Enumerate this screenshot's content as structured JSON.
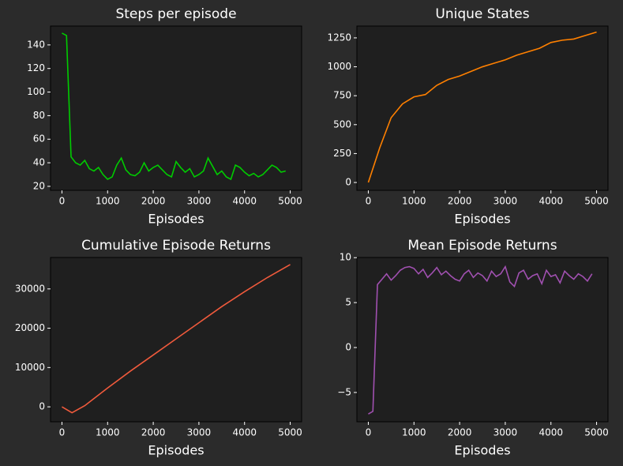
{
  "chart_data": [
    {
      "type": "line",
      "title": "Steps per episode",
      "xlabel": "Episodes",
      "color": "#00cc00",
      "x": [
        0,
        100,
        200,
        300,
        400,
        500,
        600,
        700,
        800,
        900,
        1000,
        1100,
        1200,
        1300,
        1400,
        1500,
        1600,
        1700,
        1800,
        1900,
        2000,
        2100,
        2200,
        2300,
        2400,
        2500,
        2600,
        2700,
        2800,
        2900,
        3000,
        3100,
        3200,
        3300,
        3400,
        3500,
        3600,
        3700,
        3800,
        3900,
        4000,
        4100,
        4200,
        4300,
        4400,
        4500,
        4600,
        4700,
        4800,
        4900
      ],
      "values": [
        150,
        148,
        45,
        40,
        38,
        42,
        35,
        33,
        36,
        30,
        26,
        28,
        38,
        44,
        34,
        30,
        29,
        32,
        40,
        33,
        36,
        38,
        34,
        30,
        28,
        41,
        36,
        32,
        35,
        28,
        30,
        33,
        44,
        37,
        30,
        33,
        28,
        26,
        38,
        36,
        32,
        29,
        31,
        28,
        30,
        34,
        38,
        36,
        32,
        33
      ],
      "xlim": [
        -250,
        5250
      ],
      "ylim": [
        16.6,
        156
      ],
      "xticks": [
        0,
        1000,
        2000,
        3000,
        4000,
        5000
      ],
      "yticks": [
        20,
        40,
        60,
        80,
        100,
        120,
        140
      ]
    },
    {
      "type": "line",
      "title": "Unique States",
      "xlabel": "Episodes",
      "color": "#ff8000",
      "x": [
        0,
        250,
        500,
        750,
        1000,
        1250,
        1500,
        1750,
        2000,
        2250,
        2500,
        2750,
        3000,
        3250,
        3500,
        3750,
        4000,
        4250,
        4500,
        4750,
        5000
      ],
      "values": [
        0,
        300,
        560,
        680,
        740,
        760,
        840,
        890,
        920,
        960,
        1000,
        1030,
        1060,
        1100,
        1130,
        1160,
        1210,
        1230,
        1240,
        1270,
        1300
      ],
      "xlim": [
        -250,
        5250
      ],
      "ylim": [
        -68,
        1352
      ],
      "xticks": [
        0,
        1000,
        2000,
        3000,
        4000,
        5000
      ],
      "yticks": [
        0,
        250,
        500,
        750,
        1000,
        1250
      ]
    },
    {
      "type": "line",
      "title": "Cumulative Episode Returns",
      "xlabel": "Episodes",
      "color": "#f05a3c",
      "x": [
        0,
        220,
        500,
        1000,
        1500,
        2000,
        2500,
        3000,
        3500,
        4000,
        4500,
        5000
      ],
      "values": [
        0,
        -1500,
        300,
        4800,
        9100,
        13200,
        17300,
        21400,
        25500,
        29300,
        32900,
        36200
      ],
      "xlim": [
        -250,
        5250
      ],
      "ylim": [
        -3800,
        38000
      ],
      "xticks": [
        0,
        1000,
        2000,
        3000,
        4000,
        5000
      ],
      "yticks": [
        0,
        10000,
        20000,
        30000
      ]
    },
    {
      "type": "line",
      "title": "Mean Episode Returns",
      "xlabel": "Episodes",
      "color": "#a050b0",
      "x": [
        0,
        100,
        200,
        300,
        400,
        500,
        600,
        700,
        800,
        900,
        1000,
        1100,
        1200,
        1300,
        1400,
        1500,
        1600,
        1700,
        1800,
        1900,
        2000,
        2100,
        2200,
        2300,
        2400,
        2500,
        2600,
        2700,
        2800,
        2900,
        3000,
        3100,
        3200,
        3300,
        3400,
        3500,
        3600,
        3700,
        3800,
        3900,
        4000,
        4100,
        4200,
        4300,
        4400,
        4500,
        4600,
        4700,
        4800,
        4900
      ],
      "values": [
        -7.4,
        -7.1,
        7.0,
        7.6,
        8.2,
        7.5,
        8.0,
        8.6,
        8.9,
        9.0,
        8.8,
        8.2,
        8.7,
        7.8,
        8.3,
        8.9,
        8.1,
        8.5,
        8.0,
        7.6,
        7.4,
        8.2,
        8.6,
        7.8,
        8.3,
        8.0,
        7.4,
        8.5,
        7.9,
        8.2,
        9.0,
        7.3,
        6.8,
        8.3,
        8.6,
        7.6,
        8.0,
        8.2,
        7.1,
        8.6,
        7.9,
        8.1,
        7.2,
        8.5,
        8.0,
        7.6,
        8.2,
        7.9,
        7.4,
        8.2
      ],
      "xlim": [
        -250,
        5250
      ],
      "ylim": [
        -8.26,
        10.02
      ],
      "xticks": [
        0,
        1000,
        2000,
        3000,
        4000,
        5000
      ],
      "yticks": [
        {
          "value": -5,
          "label": "−5"
        },
        0,
        5,
        10
      ]
    }
  ]
}
